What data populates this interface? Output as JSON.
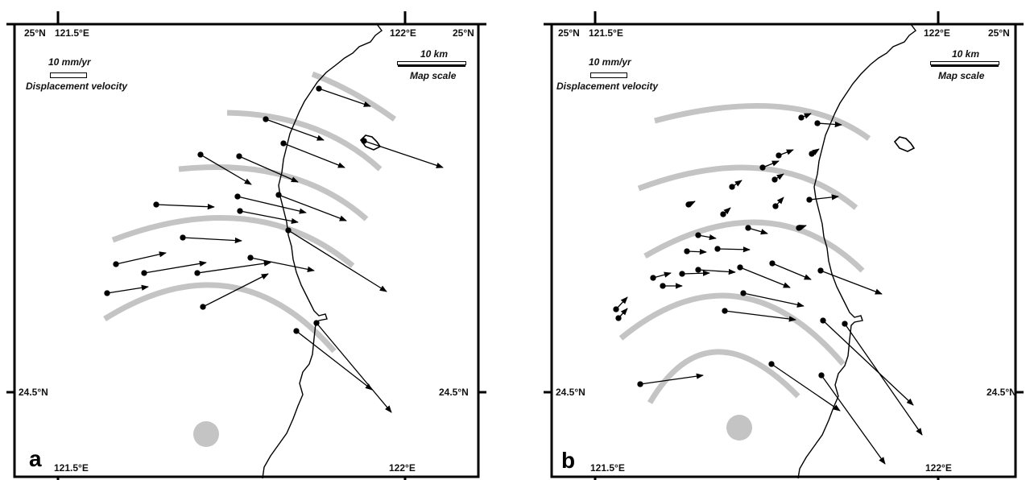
{
  "panels": [
    {
      "id": "a",
      "letter": "a",
      "labels": {
        "tl_lat": "25°N",
        "tl_lon": "121.5°E",
        "tr_lon": "122°E",
        "tr_lat": "25°N",
        "ml_lat": "24.5°N",
        "mr_lat": "24.5°N",
        "bl_lon": "121.5°E",
        "br_lon": "122°E"
      },
      "velocity_legend": {
        "value": "10 mm/yr",
        "caption": "Displacement velocity"
      },
      "scale_legend": {
        "value": "10 km",
        "caption": "Map scale"
      }
    },
    {
      "id": "b",
      "letter": "b",
      "labels": {
        "tl_lat": "25°N",
        "tl_lon": "121.5°E",
        "tr_lon": "122°E",
        "tr_lat": "25°N",
        "ml_lat": "24.5°N",
        "mr_lat": "24.5°N",
        "bl_lon": "121.5°E",
        "br_lon": "122°E"
      },
      "velocity_legend": {
        "value": "10 mm/yr",
        "caption": "Displacement velocity"
      },
      "scale_legend": {
        "value": "10 km",
        "caption": "Map scale"
      }
    }
  ],
  "colors": {
    "arc": "#c4c4c4",
    "coast": "#000000",
    "vector": "#000000",
    "frame": "#000000"
  }
}
